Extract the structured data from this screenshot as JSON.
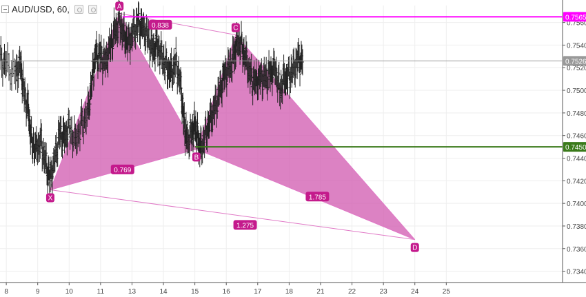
{
  "header": {
    "symbol_label": "AUD/USD, 60,",
    "collapse_icon": "minus-box-icon",
    "eye_icon": "visibility-icon",
    "settings_icon": "settings-icon"
  },
  "colors": {
    "pattern_fill": "#d25fb2",
    "pattern_line": "#e079c6",
    "candle": "#222222",
    "magenta_line": "#ff00ff",
    "green_line": "#3a7a1a",
    "current_line": "#999999",
    "label_bg": "#c41a8c",
    "axis_text": "#444444"
  },
  "chart_data": {
    "type": "candlestick",
    "title": "AUD/USD, 60,",
    "x_tick_labels": [
      "8",
      "9",
      "10",
      "11",
      "13",
      "14",
      "15",
      "16",
      "17",
      "18",
      "21",
      "22",
      "23",
      "24",
      "25"
    ],
    "y_ticks": [
      0.734,
      0.736,
      0.738,
      0.74,
      0.742,
      0.744,
      0.746,
      0.748,
      0.75,
      0.752,
      0.754,
      0.756
    ],
    "y_tick_labels": [
      "0.7340",
      "0.7360",
      "0.7380",
      "0.7400",
      "0.7420",
      "0.7440",
      "0.7460",
      "0.7480",
      "0.7500",
      "0.7520",
      "0.7540",
      "0.7560"
    ],
    "ylim": [
      0.733,
      0.7575
    ],
    "price_tracks": [
      {
        "x": 7.8,
        "y": 0.7528
      },
      {
        "x": 8.0,
        "y": 0.7522
      },
      {
        "x": 8.3,
        "y": 0.7515
      },
      {
        "x": 8.45,
        "y": 0.7524
      },
      {
        "x": 8.55,
        "y": 0.75
      },
      {
        "x": 8.7,
        "y": 0.7482
      },
      {
        "x": 8.8,
        "y": 0.7455
      },
      {
        "x": 8.95,
        "y": 0.7448
      },
      {
        "x": 9.1,
        "y": 0.7455
      },
      {
        "x": 9.25,
        "y": 0.7435
      },
      {
        "x": 9.4,
        "y": 0.7422
      },
      {
        "x": 9.55,
        "y": 0.744
      },
      {
        "x": 9.7,
        "y": 0.7462
      },
      {
        "x": 9.85,
        "y": 0.7458
      },
      {
        "x": 10.0,
        "y": 0.7467
      },
      {
        "x": 10.2,
        "y": 0.7455
      },
      {
        "x": 10.4,
        "y": 0.747
      },
      {
        "x": 10.6,
        "y": 0.748
      },
      {
        "x": 10.75,
        "y": 0.7515
      },
      {
        "x": 10.85,
        "y": 0.7532
      },
      {
        "x": 11.0,
        "y": 0.753
      },
      {
        "x": 11.15,
        "y": 0.7525
      },
      {
        "x": 11.3,
        "y": 0.7538
      },
      {
        "x": 11.45,
        "y": 0.7552
      },
      {
        "x": 11.6,
        "y": 0.756
      },
      {
        "x": 11.75,
        "y": 0.7548
      },
      {
        "x": 11.9,
        "y": 0.7542
      },
      {
        "x": 12.05,
        "y": 0.7552
      },
      {
        "x": 12.2,
        "y": 0.756
      },
      {
        "x": 12.35,
        "y": 0.7555
      },
      {
        "x": 12.5,
        "y": 0.7548
      },
      {
        "x": 12.65,
        "y": 0.7535
      },
      {
        "x": 12.8,
        "y": 0.754
      },
      {
        "x": 12.95,
        "y": 0.753
      },
      {
        "x": 13.1,
        "y": 0.752
      },
      {
        "x": 13.25,
        "y": 0.7515
      },
      {
        "x": 13.4,
        "y": 0.7525
      },
      {
        "x": 13.55,
        "y": 0.7505
      },
      {
        "x": 13.65,
        "y": 0.7472
      },
      {
        "x": 13.75,
        "y": 0.7455
      },
      {
        "x": 13.9,
        "y": 0.7462
      },
      {
        "x": 14.0,
        "y": 0.747
      },
      {
        "x": 14.1,
        "y": 0.7455
      },
      {
        "x": 14.2,
        "y": 0.7448
      },
      {
        "x": 14.35,
        "y": 0.7462
      },
      {
        "x": 14.5,
        "y": 0.7475
      },
      {
        "x": 14.65,
        "y": 0.7485
      },
      {
        "x": 14.8,
        "y": 0.75
      },
      {
        "x": 14.95,
        "y": 0.7515
      },
      {
        "x": 15.1,
        "y": 0.752
      },
      {
        "x": 15.25,
        "y": 0.753
      },
      {
        "x": 15.35,
        "y": 0.7545
      },
      {
        "x": 15.5,
        "y": 0.7538
      },
      {
        "x": 15.65,
        "y": 0.7525
      },
      {
        "x": 15.8,
        "y": 0.751
      },
      {
        "x": 15.95,
        "y": 0.7508
      },
      {
        "x": 16.1,
        "y": 0.7512
      },
      {
        "x": 16.25,
        "y": 0.751
      },
      {
        "x": 16.4,
        "y": 0.7515
      },
      {
        "x": 16.55,
        "y": 0.752
      },
      {
        "x": 16.7,
        "y": 0.75
      },
      {
        "x": 16.85,
        "y": 0.751
      },
      {
        "x": 17.0,
        "y": 0.7512
      },
      {
        "x": 17.15,
        "y": 0.752
      },
      {
        "x": 17.3,
        "y": 0.7528
      },
      {
        "x": 17.45,
        "y": 0.7525
      }
    ],
    "harmonic_points": [
      {
        "label": "X",
        "x": 9.4,
        "y": 0.7412
      },
      {
        "label": "A",
        "x": 11.6,
        "y": 0.7568
      },
      {
        "label": "B",
        "x": 14.05,
        "y": 0.7448
      },
      {
        "label": "C",
        "x": 15.3,
        "y": 0.7549
      },
      {
        "label": "D",
        "x": 21.0,
        "y": 0.7368
      }
    ],
    "ratio_labels": [
      {
        "text": "0.838",
        "x": 12.9,
        "y": 0.7558
      },
      {
        "text": "0.769",
        "x": 11.7,
        "y": 0.743
      },
      {
        "text": "1.785",
        "x": 17.9,
        "y": 0.7406
      },
      {
        "text": "1.275",
        "x": 15.6,
        "y": 0.7381
      }
    ],
    "horizontal_lines": [
      {
        "y": 0.7565,
        "label": "0.7565",
        "color": "#ff00ff",
        "x_start": 11.7
      },
      {
        "y": 0.7526,
        "label": "0.7526",
        "color": "#999999",
        "x_start": 7.8
      },
      {
        "y": 0.745,
        "label": "0.7450",
        "color": "#3a7a1a",
        "x_start": 14.0
      }
    ]
  }
}
